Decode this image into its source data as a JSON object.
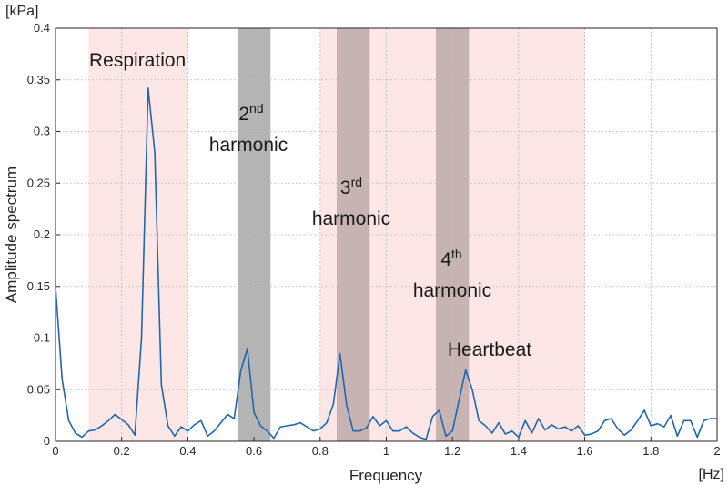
{
  "chart_data": {
    "type": "line",
    "title": "",
    "xlabel": "Frequency",
    "ylabel": "Amplitude spectrum",
    "x_unit": "[Hz]",
    "y_unit": "[kPa]",
    "xlim": [
      0,
      2
    ],
    "ylim": [
      0,
      0.4
    ],
    "xticks": [
      0,
      0.2,
      0.4,
      0.6,
      0.8,
      1,
      1.2,
      1.4,
      1.6,
      1.8,
      2
    ],
    "xtick_labels": [
      "0",
      "0.2",
      "0.4",
      "0.6",
      "0.8",
      "1",
      "1.2",
      "1.4",
      "1.6",
      "1.8",
      "2"
    ],
    "yticks": [
      0,
      0.05,
      0.1,
      0.15,
      0.2,
      0.25,
      0.3,
      0.35,
      0.4
    ],
    "ytick_labels": [
      "0",
      "0.05",
      "0.1",
      "0.15",
      "0.2",
      "0.25",
      "0.3",
      "0.35",
      "0.4"
    ],
    "grid": true,
    "line_color": "#2166ac",
    "band_colors": {
      "pink": "#fde6e6",
      "gray": "#b4b4b4",
      "overlap": "#c8b3b3"
    },
    "bands": [
      {
        "name": "respiration-band",
        "range": [
          0.1,
          0.4
        ],
        "color": "pink"
      },
      {
        "name": "heartbeat-band",
        "range": [
          0.8,
          1.6
        ],
        "color": "pink"
      },
      {
        "name": "second-harmonic-band",
        "range": [
          0.55,
          0.65
        ],
        "color": "gray"
      },
      {
        "name": "third-harmonic-band",
        "range": [
          0.85,
          0.95
        ],
        "color": "overlap"
      },
      {
        "name": "fourth-harmonic-band",
        "range": [
          1.15,
          1.25
        ],
        "color": "overlap"
      }
    ],
    "annotations": {
      "respiration": "Respiration",
      "second_num": "2",
      "second_sup": "nd",
      "second_word": "harmonic",
      "third_num": "3",
      "third_sup": "rd",
      "third_word": "harmonic",
      "fourth_num": "4",
      "fourth_sup": "th",
      "fourth_word": "harmonic",
      "heartbeat": "Heartbeat"
    },
    "series": [
      {
        "x": [
          0,
          0.02,
          0.04,
          0.06,
          0.08,
          0.1,
          0.12,
          0.14,
          0.16,
          0.18,
          0.2,
          0.22,
          0.24,
          0.26,
          0.28,
          0.3,
          0.32,
          0.34,
          0.36,
          0.38,
          0.4,
          0.42,
          0.44,
          0.46,
          0.48,
          0.5,
          0.52,
          0.54,
          0.56,
          0.58,
          0.6,
          0.62,
          0.64,
          0.66,
          0.68,
          0.7,
          0.72,
          0.74,
          0.76,
          0.78,
          0.8,
          0.82,
          0.84,
          0.86,
          0.88,
          0.9,
          0.92,
          0.94,
          0.96,
          0.98,
          1,
          1.02,
          1.04,
          1.06,
          1.08,
          1.1,
          1.12,
          1.14,
          1.16,
          1.18,
          1.2,
          1.22,
          1.24,
          1.26,
          1.28,
          1.3,
          1.32,
          1.34,
          1.36,
          1.38,
          1.4,
          1.42,
          1.44,
          1.46,
          1.48,
          1.5,
          1.52,
          1.54,
          1.56,
          1.58,
          1.6,
          1.62,
          1.64,
          1.66,
          1.68,
          1.7,
          1.72,
          1.74,
          1.76,
          1.78,
          1.8,
          1.82,
          1.84,
          1.86,
          1.88,
          1.9,
          1.92,
          1.94,
          1.96,
          1.98,
          2
        ],
        "y": [
          0.15,
          0.06,
          0.02,
          0.008,
          0.004,
          0.01,
          0.011,
          0.015,
          0.02,
          0.026,
          0.021,
          0.016,
          0.006,
          0.1,
          0.342,
          0.28,
          0.055,
          0.015,
          0.005,
          0.014,
          0.01,
          0.016,
          0.02,
          0.005,
          0.01,
          0.018,
          0.026,
          0.022,
          0.068,
          0.09,
          0.028,
          0.015,
          0.01,
          0.003,
          0.014,
          0.015,
          0.016,
          0.018,
          0.014,
          0.01,
          0.012,
          0.018,
          0.036,
          0.085,
          0.035,
          0.01,
          0.01,
          0.013,
          0.024,
          0.015,
          0.02,
          0.01,
          0.01,
          0.014,
          0.008,
          0.004,
          0.002,
          0.024,
          0.03,
          0.005,
          0.01,
          0.04,
          0.069,
          0.05,
          0.02,
          0.015,
          0.008,
          0.018,
          0.007,
          0.01,
          0.004,
          0.02,
          0.008,
          0.022,
          0.011,
          0.016,
          0.012,
          0.014,
          0.01,
          0.015,
          0.006,
          0.007,
          0.01,
          0.02,
          0.022,
          0.012,
          0.006,
          0.011,
          0.02,
          0.03,
          0.015,
          0.017,
          0.014,
          0.025,
          0.005,
          0.02,
          0.02,
          0.004,
          0.02,
          0.022,
          0.022
        ]
      }
    ]
  }
}
